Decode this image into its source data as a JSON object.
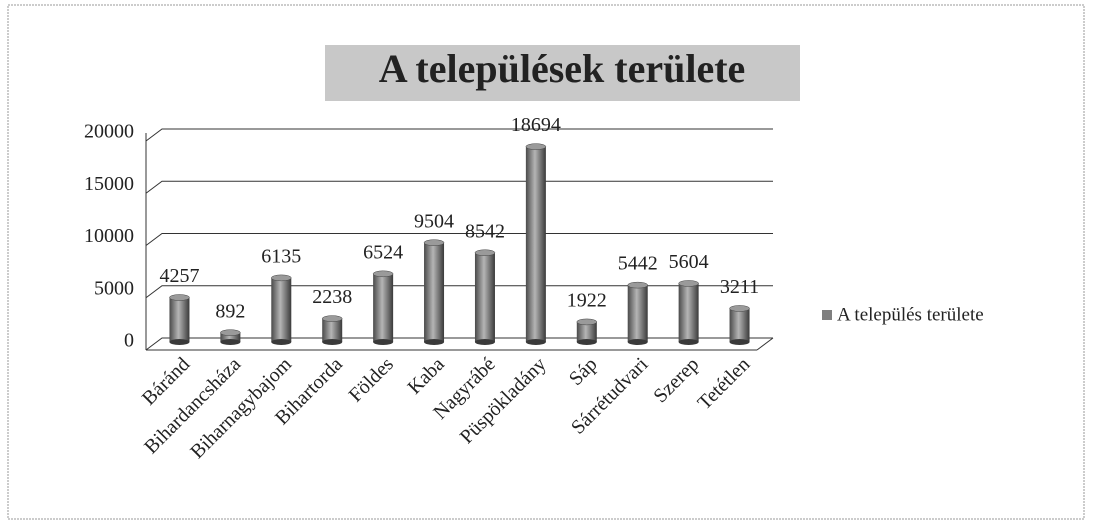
{
  "chart_data": {
    "type": "bar",
    "title": "A települések területe",
    "categories": [
      "Báránd",
      "Bihardancsháza",
      "Biharnagybajom",
      "Bihartorda",
      "Földes",
      "Kaba",
      "Nagyrábé",
      "Püspökladány",
      "Sáp",
      "Sárrétudvari",
      "Szerep",
      "Tetétlen"
    ],
    "series": [
      {
        "name": "A település területe",
        "color": "#7f7f7f",
        "values": [
          4257,
          892,
          6135,
          2238,
          6524,
          9504,
          8542,
          18694,
          1922,
          5442,
          5604,
          3211
        ]
      }
    ],
    "ylim": [
      0,
      20000
    ],
    "yticks": [
      0,
      5000,
      10000,
      15000,
      20000
    ],
    "grid": true,
    "legend": "right"
  }
}
